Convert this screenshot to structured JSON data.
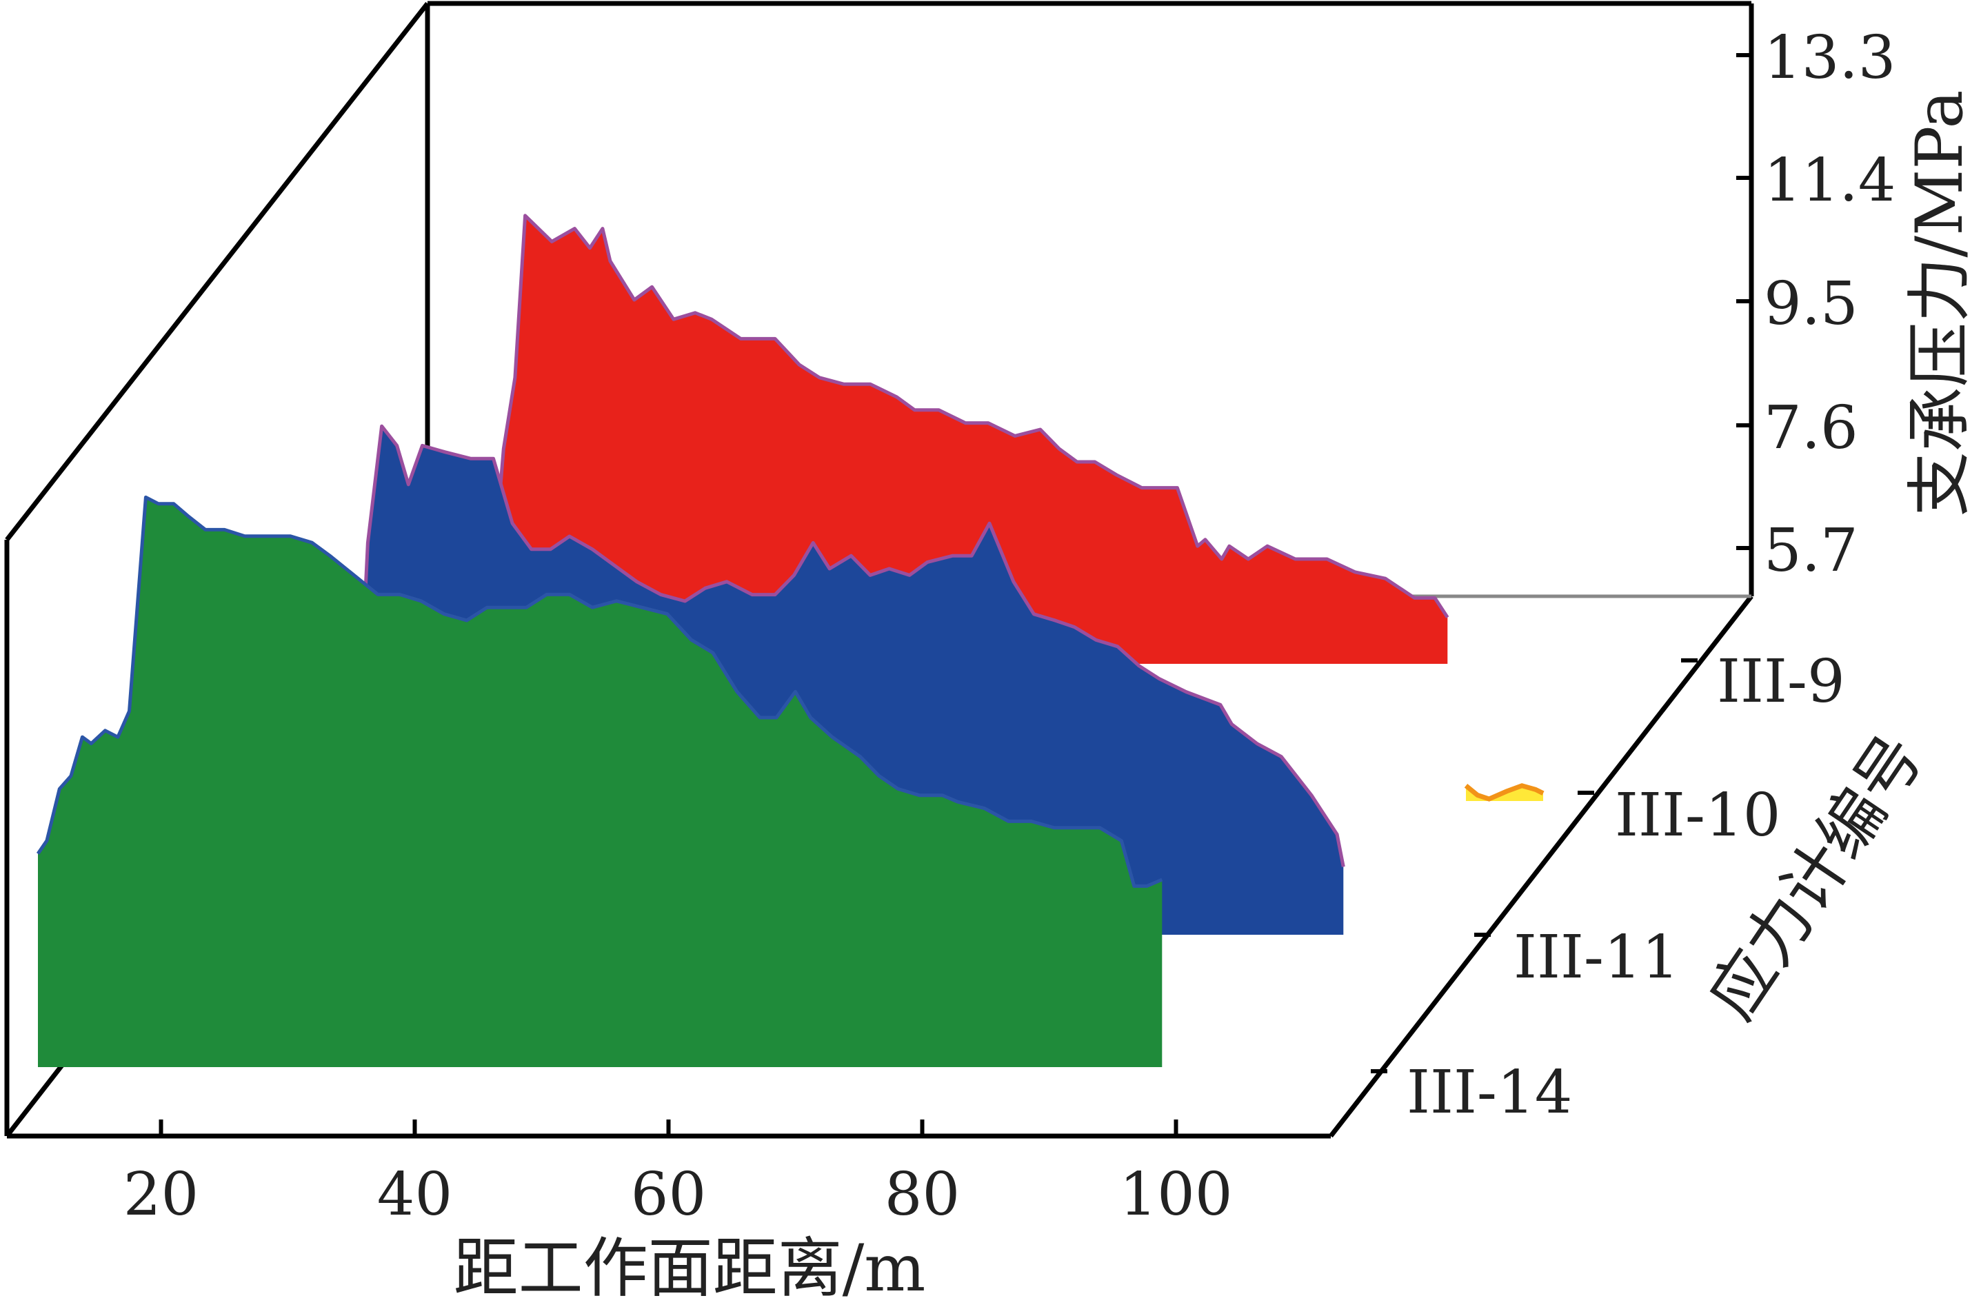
{
  "chart_data": {
    "type": "area",
    "xlabel": "距工作面距离/m",
    "ylabel": "支承压力/MPa",
    "zlabel": "应力计编号",
    "x_ticks": [
      20,
      40,
      60,
      80,
      100
    ],
    "x_range": [
      10,
      113
    ],
    "y_ticks": [
      "5.7",
      "7.6",
      "9.5",
      "11.4",
      "13.3"
    ],
    "y_range": [
      4.5,
      14.0
    ],
    "z_ticks": [
      "III-9",
      "III-10",
      "III-11",
      "III-14"
    ],
    "series": [
      {
        "name": "III-9",
        "color": "#e8221b",
        "edge": "#9b4f9e",
        "x": [
          31.8,
          32.6,
          33.5,
          34.3,
          36.4,
          38.2,
          39.4,
          40.4,
          41.0,
          42.9,
          44.3,
          46.0,
          47.7,
          49.0,
          51.3,
          54.0,
          55.9,
          57.5,
          59.4,
          61.5,
          63.6,
          65.0,
          66.9,
          69.0,
          70.8,
          72.9,
          74.9,
          76.4,
          77.8,
          79.2,
          80.9,
          82.9,
          85.7,
          87.3,
          87.9,
          89.2,
          89.8,
          91.3,
          92.8,
          95.0,
          97.5,
          99.7,
          102.1,
          104.4,
          106.0,
          107.0
        ],
        "y": [
          6.0,
          7.9,
          9.0,
          11.5,
          11.1,
          11.3,
          11.0,
          11.3,
          10.8,
          10.2,
          10.4,
          9.9,
          10.0,
          9.9,
          9.6,
          9.6,
          9.2,
          9.0,
          8.9,
          8.9,
          8.7,
          8.5,
          8.5,
          8.3,
          8.3,
          8.1,
          8.2,
          7.9,
          7.7,
          7.7,
          7.5,
          7.3,
          7.3,
          6.4,
          6.5,
          6.2,
          6.4,
          6.2,
          6.4,
          6.2,
          6.2,
          6.0,
          5.9,
          5.6,
          5.6,
          5.3
        ]
      },
      {
        "name": "III-10",
        "color": "#ffe838",
        "edge": "#f29318",
        "x": [
          102.0,
          102.6,
          103.2,
          104.1,
          104.9,
          105.6,
          106.0
        ],
        "y": [
          4.9,
          4.65,
          4.55,
          4.75,
          4.9,
          4.8,
          4.7
        ]
      },
      {
        "name": "III-11",
        "color": "#1d479a",
        "edge": "#9b4f9e",
        "x": [
          22.5,
          23.2,
          24.3,
          25.5,
          26.4,
          27.5,
          29.3,
          31.3,
          33.1,
          34.6,
          36.1,
          37.6,
          39.1,
          40.9,
          42.3,
          44.4,
          46.3,
          48.2,
          49.8,
          51.5,
          53.5,
          55.3,
          56.8,
          58.3,
          59.6,
          61.3,
          62.8,
          64.3,
          65.9,
          67.3,
          69.3,
          70.8,
          72.2,
          74.1,
          75.7,
          77.4,
          78.9,
          80.6,
          82.3,
          84.0,
          85.6,
          87.7,
          90.4,
          91.3,
          93.3,
          95.2,
          97.6,
          98.6,
          99.6,
          100.1
        ],
        "y": [
          5.8,
          8.6,
          10.4,
          10.1,
          9.5,
          10.1,
          10.0,
          9.9,
          9.9,
          8.9,
          8.5,
          8.5,
          8.7,
          8.5,
          8.3,
          8.0,
          7.8,
          7.7,
          7.9,
          8.0,
          7.8,
          7.8,
          8.1,
          8.6,
          8.2,
          8.4,
          8.1,
          8.2,
          8.1,
          8.3,
          8.4,
          8.4,
          8.9,
          8.0,
          7.5,
          7.4,
          7.3,
          7.1,
          7.0,
          6.7,
          6.5,
          6.3,
          6.1,
          5.8,
          5.5,
          5.3,
          4.7,
          4.4,
          4.1,
          3.6
        ]
      },
      {
        "name": "III-14",
        "color": "#1f8b3a",
        "edge": "#2b55a6",
        "x": [
          10.3,
          11.0,
          12.0,
          12.9,
          13.8,
          14.5,
          15.6,
          16.6,
          17.5,
          18.8,
          19.8,
          21.0,
          22.2,
          23.5,
          25.0,
          26.6,
          28.4,
          30.2,
          31.9,
          33.3,
          35.2,
          37.1,
          38.8,
          40.5,
          42.3,
          44.1,
          45.7,
          47.2,
          48.8,
          50.4,
          52.2,
          54.0,
          55.9,
          57.9,
          59.9,
          61.8,
          63.5,
          65.4,
          67.2,
          68.5,
          70.0,
          71.2,
          72.9,
          75.1,
          76.6,
          78.1,
          79.8,
          81.6,
          82.8,
          84.9,
          86.8,
          88.6,
          90.4,
          92.4,
          94.0,
          95.7,
          96.7,
          97.7,
          98.9
        ],
        "y": [
          5.6,
          5.8,
          6.6,
          6.8,
          7.4,
          7.3,
          7.5,
          7.4,
          7.8,
          11.1,
          11.0,
          11.0,
          10.8,
          10.6,
          10.6,
          10.5,
          10.5,
          10.5,
          10.4,
          10.2,
          9.9,
          9.6,
          9.6,
          9.5,
          9.3,
          9.2,
          9.4,
          9.4,
          9.4,
          9.6,
          9.6,
          9.4,
          9.5,
          9.4,
          9.3,
          8.9,
          8.7,
          8.1,
          7.7,
          7.7,
          8.1,
          7.7,
          7.4,
          7.1,
          6.8,
          6.6,
          6.5,
          6.5,
          6.4,
          6.3,
          6.1,
          6.1,
          6.0,
          6.0,
          6.0,
          5.8,
          5.1,
          5.1,
          5.2
        ]
      }
    ]
  }
}
